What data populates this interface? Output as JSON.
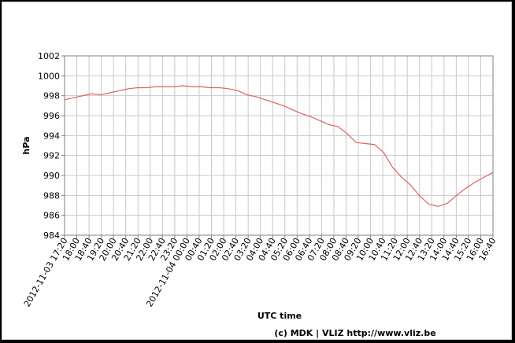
{
  "chart_data": {
    "type": "line",
    "title": "",
    "xlabel": "UTC time",
    "ylabel": "hPa",
    "credit": "(c) MDK | VLIZ http://www.vliz.be",
    "ylim": [
      984,
      1002
    ],
    "yticks": [
      984,
      986,
      988,
      990,
      992,
      994,
      996,
      998,
      1000,
      1002
    ],
    "grid": true,
    "legend": "none",
    "line_color": "#e06060",
    "grid_color": "#c8c8c8",
    "xticks": [
      "2012-11-03 17:20",
      "18:00",
      "18:40",
      "19:20",
      "20:00",
      "20:40",
      "21:20",
      "22:00",
      "22:40",
      "23:20",
      "2012-11-04 00:00",
      "00:40",
      "01:20",
      "02:00",
      "02:40",
      "03:20",
      "04:00",
      "04:40",
      "05:20",
      "06:00",
      "06:40",
      "07:20",
      "08:00",
      "08:40",
      "09:20",
      "10:00",
      "10:40",
      "11:20",
      "12:00",
      "12:40",
      "13:20",
      "14:00",
      "14:40",
      "15:20",
      "16:00",
      "16:40"
    ],
    "series": [
      {
        "values": [
          997.6,
          997.8,
          998.0,
          998.2,
          998.1,
          998.3,
          998.5,
          998.7,
          998.8,
          998.8,
          998.9,
          998.9,
          998.9,
          999.0,
          998.9,
          998.9,
          998.8,
          998.8,
          998.7,
          998.5,
          998.1,
          997.9,
          997.6,
          997.3,
          997.0,
          996.6,
          996.2,
          995.9,
          995.5,
          995.1,
          994.9,
          994.2,
          993.3,
          993.2,
          993.1,
          992.3,
          990.8,
          989.8,
          989.0,
          987.9,
          987.1,
          986.9,
          987.2,
          988.0,
          988.7,
          989.3,
          989.8,
          990.3
        ]
      }
    ]
  }
}
